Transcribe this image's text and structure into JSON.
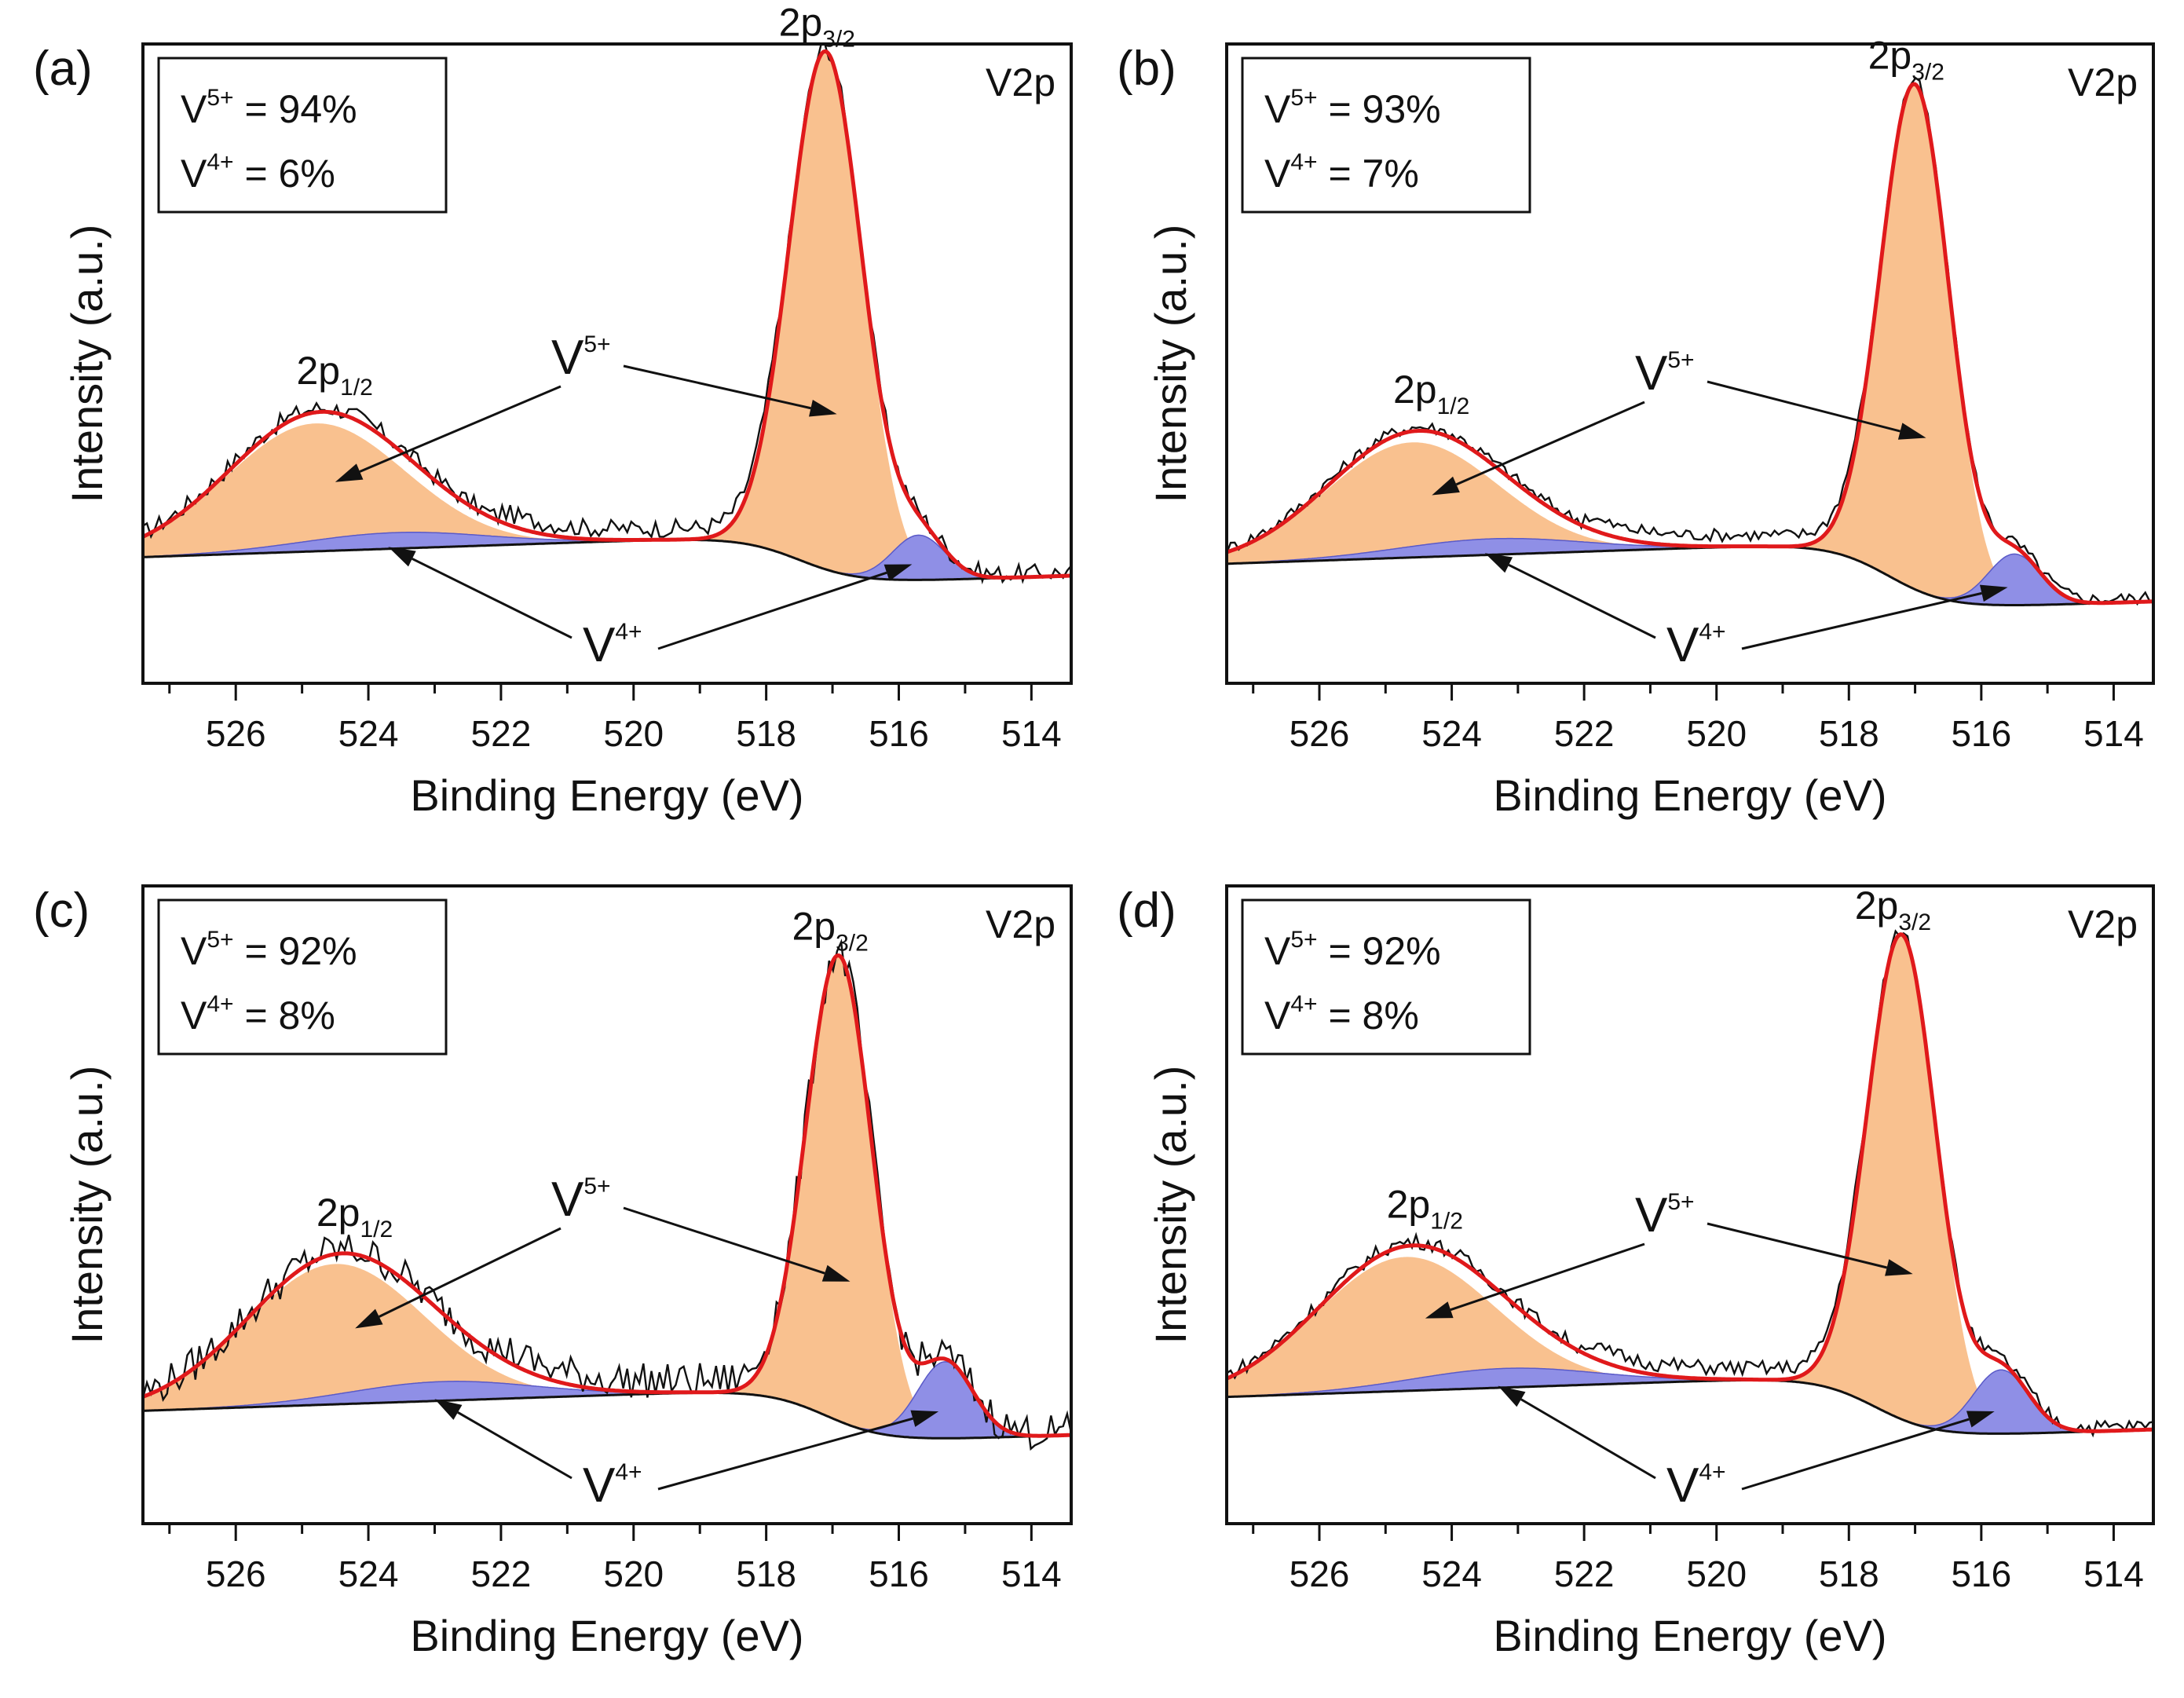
{
  "colors": {
    "v5_fill": "#f9c18f",
    "v4_fill": "#8f8fe6",
    "envelope": "#e0191b",
    "raw": "#111111",
    "background_line": "#111111",
    "frame": "#111111"
  },
  "chart_data": [
    {
      "type": "line",
      "panel": "(a)",
      "title": "",
      "xlabel": "Binding Energy (eV)",
      "ylabel": "Intensity (a.u.)",
      "xlim": [
        527.4,
        513.4
      ],
      "ylim": [
        0,
        1
      ],
      "xticks": [
        "526",
        "524",
        "522",
        "520",
        "518",
        "516",
        "514"
      ],
      "annotation": "V2p",
      "composition": {
        "v5_base": "V",
        "v5_sup": "5+",
        "v5_value": "= 94%",
        "v4_base": "V",
        "v4_sup": "4+",
        "v4_value": "= 6%"
      },
      "labels": {
        "p12_main": "2p",
        "p12_sub": "1/2",
        "p32_main": "2p",
        "p32_sub": "3/2",
        "v5_base": "V",
        "v5_sup": "5+",
        "v4_base": "V",
        "v4_sup": "4+"
      },
      "peaks": {
        "p12": {
          "center": 524.8,
          "height": 0.2,
          "width": 1.35
        },
        "p32": {
          "center": 517.1,
          "height": 0.81,
          "width": 0.55
        },
        "v4a": {
          "center": 523.6,
          "height": 0.025,
          "width": 1.4
        },
        "v4b": {
          "center": 515.7,
          "height": 0.07,
          "width": 0.4
        }
      },
      "background": {
        "high": 0.232,
        "low": 0.154,
        "step_center": 517.5
      },
      "noise": 0.014
    },
    {
      "type": "line",
      "panel": "(b)",
      "title": "",
      "xlabel": "Binding Energy (eV)",
      "ylabel": "Intensity (a.u.)",
      "xlim": [
        527.4,
        513.4
      ],
      "ylim": [
        0,
        1
      ],
      "xticks": [
        "526",
        "524",
        "522",
        "520",
        "518",
        "516",
        "514"
      ],
      "annotation": "V2p",
      "composition": {
        "v5_base": "V",
        "v5_sup": "5+",
        "v5_value": "= 93%",
        "v4_base": "V",
        "v4_sup": "4+",
        "v4_value": "= 7%"
      },
      "labels": {
        "p12_main": "2p",
        "p12_sub": "1/2",
        "p32_main": "2p",
        "p32_sub": "3/2",
        "v5_base": "V",
        "v5_sup": "5+",
        "v4_base": "V",
        "v4_sup": "4+"
      },
      "peaks": {
        "p12": {
          "center": 524.6,
          "height": 0.18,
          "width": 1.3
        },
        "p32": {
          "center": 517.0,
          "height": 0.79,
          "width": 0.52
        },
        "v4a": {
          "center": 523.4,
          "height": 0.025,
          "width": 1.4
        },
        "v4b": {
          "center": 515.5,
          "height": 0.08,
          "width": 0.4
        }
      },
      "background": {
        "high": 0.222,
        "low": 0.114,
        "step_center": 517.4
      },
      "noise": 0.01
    },
    {
      "type": "line",
      "panel": "(c)",
      "title": "",
      "xlabel": "Binding Energy (eV)",
      "ylabel": "Intensity (a.u.)",
      "xlim": [
        527.4,
        513.4
      ],
      "ylim": [
        0,
        1
      ],
      "xticks": [
        "526",
        "524",
        "522",
        "520",
        "518",
        "516",
        "514"
      ],
      "annotation": "V2p",
      "composition": {
        "v5_base": "V",
        "v5_sup": "5+",
        "v5_value": "= 92%",
        "v4_base": "V",
        "v4_sup": "4+",
        "v4_value": "= 8%"
      },
      "labels": {
        "p12_main": "2p",
        "p12_sub": "1/2",
        "p32_main": "2p",
        "p32_sub": "3/2",
        "v5_base": "V",
        "v5_sup": "5+",
        "v4_base": "V",
        "v4_sup": "4+"
      },
      "peaks": {
        "p12": {
          "center": 524.5,
          "height": 0.22,
          "width": 1.35
        },
        "p32": {
          "center": 516.9,
          "height": 0.73,
          "width": 0.5
        },
        "v4a": {
          "center": 522.9,
          "height": 0.03,
          "width": 1.4
        },
        "v4b": {
          "center": 515.3,
          "height": 0.12,
          "width": 0.42
        }
      },
      "background": {
        "high": 0.213,
        "low": 0.126,
        "step_center": 517.1
      },
      "noise": 0.028
    },
    {
      "type": "line",
      "panel": "(d)",
      "title": "",
      "xlabel": "Binding Energy (eV)",
      "ylabel": "Intensity (a.u.)",
      "xlim": [
        527.4,
        513.4
      ],
      "ylim": [
        0,
        1
      ],
      "xticks": [
        "526",
        "524",
        "522",
        "520",
        "518",
        "516",
        "514"
      ],
      "annotation": "V2p",
      "composition": {
        "v5_base": "V",
        "v5_sup": "5+",
        "v5_value": "= 92%",
        "v4_base": "V",
        "v4_sup": "4+",
        "v4_value": "= 8%"
      },
      "labels": {
        "p12_main": "2p",
        "p12_sub": "1/2",
        "p32_main": "2p",
        "p32_sub": "3/2",
        "v5_base": "V",
        "v5_sup": "5+",
        "v4_base": "V",
        "v4_sup": "4+"
      },
      "peaks": {
        "p12": {
          "center": 524.7,
          "height": 0.21,
          "width": 1.35
        },
        "p32": {
          "center": 517.2,
          "height": 0.76,
          "width": 0.52
        },
        "v4a": {
          "center": 523.2,
          "height": 0.03,
          "width": 1.4
        },
        "v4b": {
          "center": 515.7,
          "height": 0.1,
          "width": 0.42
        }
      },
      "background": {
        "high": 0.233,
        "low": 0.133,
        "step_center": 517.6
      },
      "noise": 0.012
    }
  ]
}
